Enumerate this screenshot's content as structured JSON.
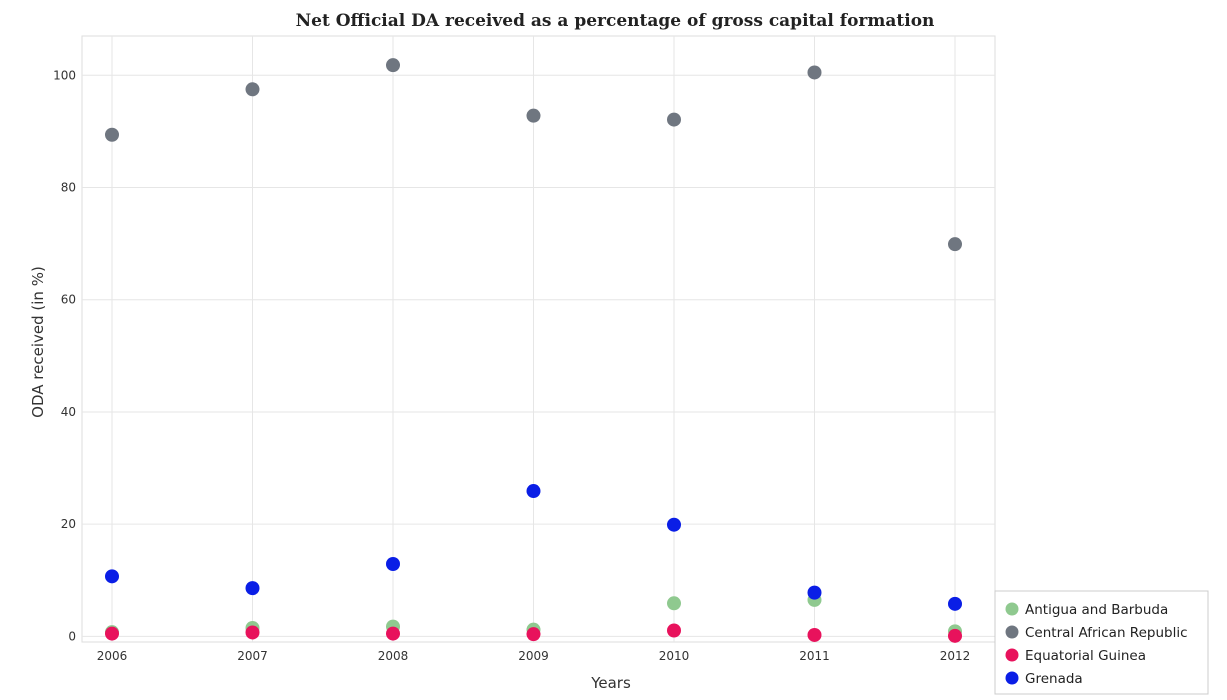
{
  "chart_data": {
    "type": "scatter",
    "title": "Net Official DA received as a percentage of gross capital formation",
    "xlabel": "Years",
    "ylabel": "ODA received (in %)",
    "categories": [
      "2006",
      "2007",
      "2008",
      "2009",
      "2010",
      "2011",
      "2012"
    ],
    "ylim": [
      -1,
      107
    ],
    "yticks": [
      0,
      20,
      40,
      60,
      80,
      100
    ],
    "grid": true,
    "legend_position": "bottom-right",
    "series": [
      {
        "name": "Antigua and Barbuda",
        "color": "#8fc98f",
        "values": [
          0.75,
          1.5,
          1.75,
          1.2,
          5.9,
          6.5,
          0.9
        ]
      },
      {
        "name": "Central African Republic",
        "color": "#6f7680",
        "values": [
          89.4,
          97.5,
          101.8,
          92.8,
          92.1,
          100.5,
          69.9
        ]
      },
      {
        "name": "Equatorial Guinea",
        "color": "#e8125c",
        "values": [
          0.5,
          0.7,
          0.5,
          0.4,
          1.05,
          0.25,
          0.1
        ]
      },
      {
        "name": "Grenada",
        "color": "#0a1ee6",
        "values": [
          10.7,
          8.6,
          12.9,
          25.9,
          19.9,
          7.8,
          5.8
        ]
      }
    ]
  }
}
